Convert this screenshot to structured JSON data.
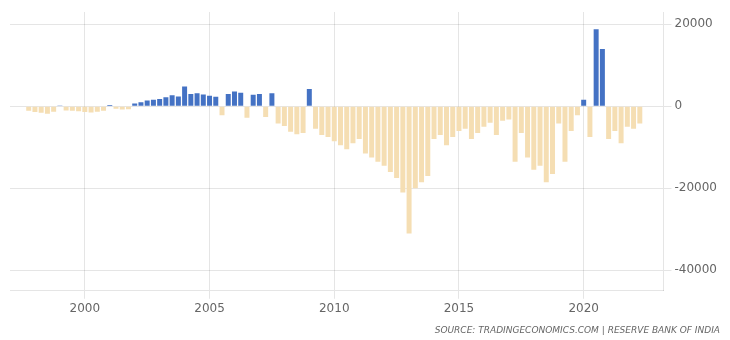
{
  "chart_data": {
    "type": "bar",
    "x": [
      1997.75,
      1998,
      1998.25,
      1998.5,
      1998.75,
      1999,
      1999.25,
      1999.5,
      1999.75,
      2000,
      2000.25,
      2000.5,
      2000.75,
      2001,
      2001.25,
      2001.5,
      2001.75,
      2002,
      2002.25,
      2002.5,
      2002.75,
      2003,
      2003.25,
      2003.5,
      2003.75,
      2004,
      2004.25,
      2004.5,
      2004.75,
      2005,
      2005.25,
      2005.5,
      2005.75,
      2006,
      2006.25,
      2006.5,
      2006.75,
      2007,
      2007.25,
      2007.5,
      2007.75,
      2008,
      2008.25,
      2008.5,
      2008.75,
      2009,
      2009.25,
      2009.5,
      2009.75,
      2010,
      2010.25,
      2010.5,
      2010.75,
      2011,
      2011.25,
      2011.5,
      2011.75,
      2012,
      2012.25,
      2012.5,
      2012.75,
      2013,
      2013.25,
      2013.5,
      2013.75,
      2014,
      2014.25,
      2014.5,
      2014.75,
      2015,
      2015.25,
      2015.5,
      2015.75,
      2016,
      2016.25,
      2016.5,
      2016.75,
      2017,
      2017.25,
      2017.5,
      2017.75,
      2018,
      2018.25,
      2018.5,
      2018.75,
      2019,
      2019.25,
      2019.5,
      2019.75,
      2020,
      2020.25,
      2020.5,
      2020.75,
      2021,
      2021.25,
      2021.5,
      2021.75,
      2022,
      2022.25
    ],
    "values": [
      -1100,
      -1400,
      -1600,
      -1800,
      -1300,
      200,
      -1000,
      -1100,
      -1200,
      -1400,
      -1500,
      -1300,
      -1100,
      300,
      -600,
      -800,
      -700,
      700,
      1000,
      1400,
      1600,
      1800,
      2200,
      2700,
      2400,
      4800,
      3000,
      3200,
      2900,
      2600,
      2300,
      -2200,
      3000,
      3600,
      3300,
      -2800,
      2800,
      3000,
      -2600,
      3200,
      -4200,
      -4800,
      -6200,
      -6800,
      -6500,
      4200,
      -5500,
      -7000,
      -7500,
      -8500,
      -9500,
      -10500,
      -9000,
      -8000,
      -11500,
      -12500,
      -13500,
      -14500,
      -16000,
      -17500,
      -21000,
      -31000,
      -20000,
      -18500,
      -17000,
      -8000,
      -7000,
      -9500,
      -7500,
      -6000,
      -5500,
      -8000,
      -6500,
      -5000,
      -4000,
      -7000,
      -3500,
      -3200,
      -13500,
      -6500,
      -12500,
      -15500,
      -14500,
      -18500,
      -16500,
      -4200,
      -13500,
      -6000,
      -2200,
      1600,
      -7500,
      18800,
      14000,
      -8000,
      -6000,
      -9000,
      -5000,
      -5500,
      -4200
    ],
    "colors": [
      "#f5deb3",
      "#f5deb3",
      "#f5deb3",
      "#f5deb3",
      "#f5deb3",
      "#4472c4",
      "#f5deb3",
      "#f5deb3",
      "#f5deb3",
      "#f5deb3",
      "#f5deb3",
      "#f5deb3",
      "#f5deb3",
      "#4472c4",
      "#f5deb3",
      "#f5deb3",
      "#f5deb3",
      "#4472c4",
      "#4472c4",
      "#4472c4",
      "#4472c4",
      "#4472c4",
      "#4472c4",
      "#4472c4",
      "#4472c4",
      "#4472c4",
      "#4472c4",
      "#4472c4",
      "#4472c4",
      "#4472c4",
      "#4472c4",
      "#f5deb3",
      "#4472c4",
      "#4472c4",
      "#4472c4",
      "#f5deb3",
      "#4472c4",
      "#4472c4",
      "#f5deb3",
      "#4472c4",
      "#f5deb3",
      "#f5deb3",
      "#f5deb3",
      "#f5deb3",
      "#f5deb3",
      "#4472c4",
      "#f5deb3",
      "#f5deb3",
      "#f5deb3",
      "#f5deb3",
      "#f5deb3",
      "#f5deb3",
      "#f5deb3",
      "#f5deb3",
      "#f5deb3",
      "#f5deb3",
      "#f5deb3",
      "#f5deb3",
      "#f5deb3",
      "#f5deb3",
      "#f5deb3",
      "#f5deb3",
      "#f5deb3",
      "#f5deb3",
      "#f5deb3",
      "#f5deb3",
      "#f5deb3",
      "#f5deb3",
      "#f5deb3",
      "#f5deb3",
      "#f5deb3",
      "#f5deb3",
      "#f5deb3",
      "#f5deb3",
      "#f5deb3",
      "#f5deb3",
      "#f5deb3",
      "#f5deb3",
      "#f5deb3",
      "#f5deb3",
      "#f5deb3",
      "#f5deb3",
      "#f5deb3",
      "#f5deb3",
      "#f5deb3",
      "#f5deb3",
      "#f5deb3",
      "#f5deb3",
      "#f5deb3",
      "#4472c4",
      "#f5deb3",
      "#4472c4",
      "#4472c4",
      "#f5deb3",
      "#f5deb3",
      "#f5deb3",
      "#f5deb3",
      "#f5deb3",
      "#f5deb3"
    ],
    "xlim": [
      1997.0,
      2023.2
    ],
    "xticks": [
      2000,
      2005,
      2010,
      2015,
      2020
    ],
    "ylim": [
      -45000,
      23000
    ],
    "yticks": [
      -40000,
      -20000,
      0,
      20000
    ],
    "grid": true,
    "annotations": [
      "SOURCE: TRADINGECONOMICS.COM | RESERVE BANK OF INDIA"
    ]
  }
}
